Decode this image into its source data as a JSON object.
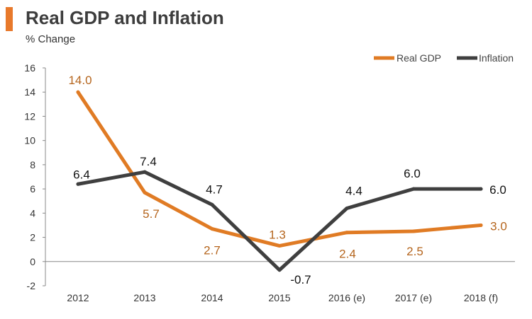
{
  "header": {
    "title": "Real GDP and Inflation",
    "subtitle": "% Change"
  },
  "colors": {
    "accent": "#E8792B",
    "gdp": "#E07B24",
    "gdp_label": "#B5651D",
    "inflation": "#3F3F3F",
    "inflation_label": "#111111",
    "axis": "#888888",
    "tick_text": "#333333"
  },
  "chart_data": {
    "type": "line",
    "title": "Real GDP and Inflation",
    "subtitle": "% Change",
    "categories": [
      "2012",
      "2013",
      "2014",
      "2015",
      "2016 (e)",
      "2017 (e)",
      "2018 (f)"
    ],
    "series": [
      {
        "name": "Real GDP",
        "values": [
          14.0,
          5.7,
          2.7,
          1.3,
          2.4,
          2.5,
          3.0
        ],
        "labels": [
          "14.0",
          "5.7",
          "2.7",
          "1.3",
          "2.4",
          "2.5",
          "3.0"
        ]
      },
      {
        "name": "Inflation",
        "values": [
          6.4,
          7.4,
          4.7,
          -0.7,
          4.4,
          6.0,
          6.0
        ],
        "labels": [
          "6.4",
          "7.4",
          "4.7",
          "-0.7",
          "4.4",
          "6.0",
          "6.0"
        ]
      }
    ],
    "yticks": [
      "-2",
      "0",
      "2",
      "4",
      "6",
      "8",
      "10",
      "12",
      "14",
      "16"
    ],
    "ylim": [
      -2,
      16
    ],
    "xlabel": "",
    "ylabel": "",
    "legend_position": "top-right",
    "grid": false
  }
}
